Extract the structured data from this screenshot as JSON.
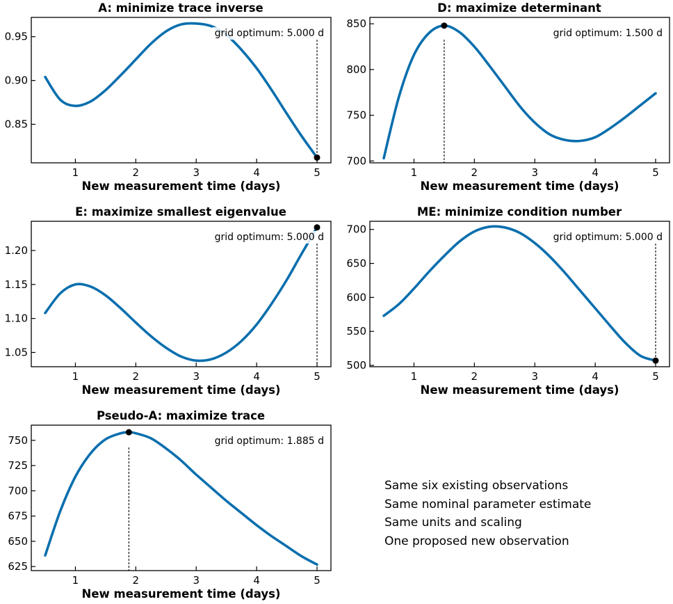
{
  "figure_notes": [
    "Same six existing observations",
    "Same nominal parameter estimate",
    "Same units and scaling",
    "One proposed new observation"
  ],
  "colors": {
    "curve": "#0a6fae",
    "marker": "#000000",
    "annotation_line": "#000000"
  },
  "chart_data": [
    {
      "type": "line",
      "title": "A: minimize trace inverse",
      "xlabel": "New measurement time (days)",
      "ylabel": "",
      "xlim": [
        0.5,
        5
      ],
      "ylim": [
        0.806,
        0.972
      ],
      "xticks": [
        1,
        2,
        3,
        4,
        5
      ],
      "xtick_labels": [
        "1",
        "2",
        "3",
        "4",
        "5"
      ],
      "yticks": [
        0.85,
        0.9,
        0.95
      ],
      "ytick_labels": [
        "0.85",
        "0.90",
        "0.95"
      ],
      "x": [
        0.5,
        0.75,
        1.0,
        1.25,
        1.5,
        1.75,
        2.0,
        2.25,
        2.5,
        2.75,
        3.0,
        3.25,
        3.5,
        3.75,
        4.0,
        4.25,
        4.5,
        4.75,
        5.0
      ],
      "y": [
        0.904,
        0.878,
        0.871,
        0.876,
        0.889,
        0.906,
        0.924,
        0.942,
        0.956,
        0.964,
        0.965,
        0.962,
        0.952,
        0.935,
        0.914,
        0.889,
        0.862,
        0.836,
        0.812
      ],
      "optimum": {
        "x": 5.0,
        "y": 0.812,
        "label": "grid optimum: 5.000 d"
      },
      "grid": false
    },
    {
      "type": "line",
      "title": "D: maximize determinant",
      "xlabel": "New measurement time (days)",
      "ylabel": "",
      "xlim": [
        0.5,
        5
      ],
      "ylim": [
        698,
        857
      ],
      "xticks": [
        1,
        2,
        3,
        4,
        5
      ],
      "xtick_labels": [
        "1",
        "2",
        "3",
        "4",
        "5"
      ],
      "yticks": [
        700,
        750,
        800,
        850
      ],
      "ytick_labels": [
        "700",
        "750",
        "800",
        "850"
      ],
      "x": [
        0.5,
        0.75,
        1.0,
        1.25,
        1.5,
        1.75,
        2.0,
        2.25,
        2.5,
        2.75,
        3.0,
        3.25,
        3.5,
        3.75,
        4.0,
        4.25,
        4.5,
        4.75,
        5.0
      ],
      "y": [
        703,
        770,
        816,
        840,
        848,
        841,
        825,
        804,
        782,
        760,
        742,
        729,
        723,
        722,
        726,
        736,
        748,
        761,
        774
      ],
      "optimum": {
        "x": 1.5,
        "y": 848,
        "label": "grid optimum: 1.500 d"
      },
      "grid": false
    },
    {
      "type": "line",
      "title": "E: maximize smallest eigenvalue",
      "xlabel": "New measurement time (days)",
      "ylabel": "",
      "xlim": [
        0.5,
        5
      ],
      "ylim": [
        1.029,
        1.243
      ],
      "xticks": [
        1,
        2,
        3,
        4,
        5
      ],
      "xtick_labels": [
        "1",
        "2",
        "3",
        "4",
        "5"
      ],
      "yticks": [
        1.05,
        1.1,
        1.15,
        1.2
      ],
      "ytick_labels": [
        "1.05",
        "1.10",
        "1.15",
        "1.20"
      ],
      "x": [
        0.5,
        0.75,
        1.0,
        1.25,
        1.5,
        1.75,
        2.0,
        2.25,
        2.5,
        2.75,
        3.0,
        3.25,
        3.5,
        3.75,
        4.0,
        4.25,
        4.5,
        4.75,
        5.0
      ],
      "y": [
        1.108,
        1.137,
        1.15,
        1.147,
        1.134,
        1.115,
        1.094,
        1.074,
        1.057,
        1.044,
        1.038,
        1.04,
        1.05,
        1.067,
        1.091,
        1.122,
        1.157,
        1.196,
        1.234
      ],
      "optimum": {
        "x": 5.0,
        "y": 1.234,
        "label": "grid optimum: 5.000 d"
      },
      "grid": false
    },
    {
      "type": "line",
      "title": "ME: minimize condition number",
      "xlabel": "New measurement time (days)",
      "ylabel": "",
      "xlim": [
        0.5,
        5
      ],
      "ylim": [
        498,
        712
      ],
      "xticks": [
        1,
        2,
        3,
        4,
        5
      ],
      "xtick_labels": [
        "1",
        "2",
        "3",
        "4",
        "5"
      ],
      "yticks": [
        500,
        550,
        600,
        650,
        700
      ],
      "ytick_labels": [
        "500",
        "550",
        "600",
        "650",
        "700"
      ],
      "x": [
        0.5,
        0.75,
        1.0,
        1.25,
        1.5,
        1.75,
        2.0,
        2.25,
        2.5,
        2.75,
        3.0,
        3.25,
        3.5,
        3.75,
        4.0,
        4.25,
        4.5,
        4.75,
        5.0
      ],
      "y": [
        573,
        590,
        613,
        638,
        661,
        682,
        697,
        704,
        703,
        695,
        680,
        660,
        636,
        610,
        584,
        558,
        533,
        514,
        507
      ],
      "optimum": {
        "x": 5.0,
        "y": 507,
        "label": "grid optimum: 5.000 d"
      },
      "grid": false
    },
    {
      "type": "line",
      "title": "Pseudo-A: maximize trace",
      "xlabel": "New measurement time (days)",
      "ylabel": "",
      "xlim": [
        0.5,
        5
      ],
      "ylim": [
        621,
        765
      ],
      "xticks": [
        1,
        2,
        3,
        4,
        5
      ],
      "xtick_labels": [
        "1",
        "2",
        "3",
        "4",
        "5"
      ],
      "yticks": [
        625,
        650,
        675,
        700,
        725,
        750
      ],
      "ytick_labels": [
        "625",
        "650",
        "675",
        "700",
        "725",
        "750"
      ],
      "x": [
        0.5,
        0.75,
        1.0,
        1.25,
        1.5,
        1.75,
        1.885,
        2.0,
        2.25,
        2.5,
        2.75,
        3.0,
        3.25,
        3.5,
        3.75,
        4.0,
        4.25,
        4.5,
        4.75,
        5.0
      ],
      "y": [
        636,
        680,
        714,
        737,
        751,
        757,
        758,
        757,
        752,
        742,
        730,
        716,
        703,
        690,
        678,
        666,
        655,
        645,
        635,
        627
      ],
      "optimum": {
        "x": 1.885,
        "y": 758,
        "label": "grid optimum: 1.885 d"
      },
      "grid": false
    }
  ]
}
